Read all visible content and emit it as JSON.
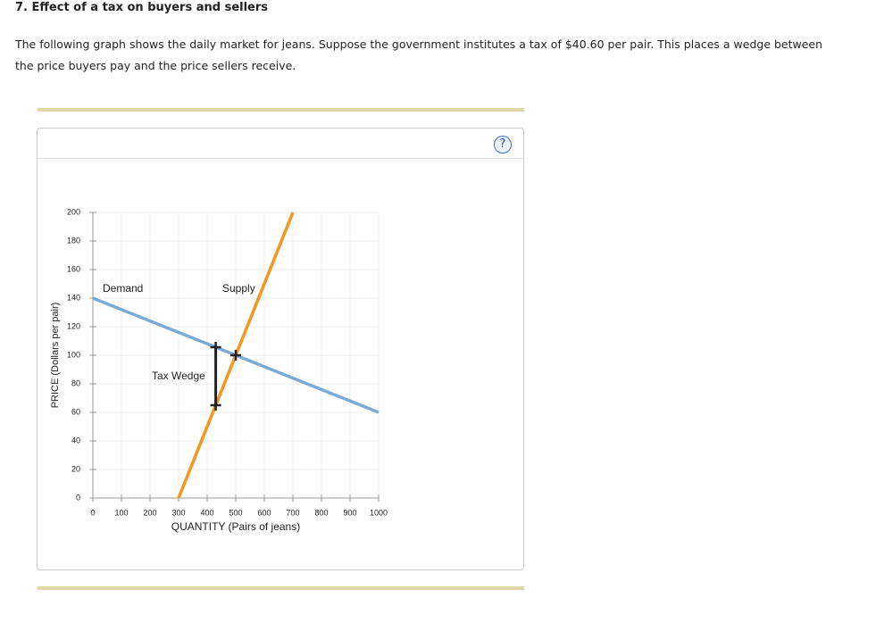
{
  "header": {
    "title": "7. Effect of a tax on buyers and sellers"
  },
  "question": "The following graph shows the daily market for jeans. Suppose the government institutes a tax of $40.60 per pair. This places a wedge between the price buyers pay and the price sellers receive.",
  "help": "?",
  "chart_data": {
    "type": "line",
    "xlabel": "QUANTITY (Pairs of jeans)",
    "ylabel": "PRICE (Dollars per pair)",
    "xlim": [
      0,
      1000
    ],
    "xticks": [
      0,
      100,
      200,
      300,
      400,
      500,
      600,
      700,
      800,
      900,
      1000
    ],
    "ylim": [
      0,
      200
    ],
    "yticks": [
      0,
      20,
      40,
      60,
      80,
      100,
      120,
      140,
      160,
      180,
      200
    ],
    "grid": true,
    "series": [
      {
        "name": "Demand",
        "color": "#7aaad6",
        "x": [
          0,
          1000
        ],
        "values": [
          140,
          60
        ]
      },
      {
        "name": "Supply",
        "color": "#f5961e",
        "x": [
          300,
          700
        ],
        "values": [
          0,
          200
        ]
      }
    ],
    "equilibrium": {
      "x": 500,
      "y": 100
    },
    "tax_wedge": {
      "label": "Tax Wedge",
      "x": 430,
      "top": 105.6,
      "bottom": 65
    }
  }
}
